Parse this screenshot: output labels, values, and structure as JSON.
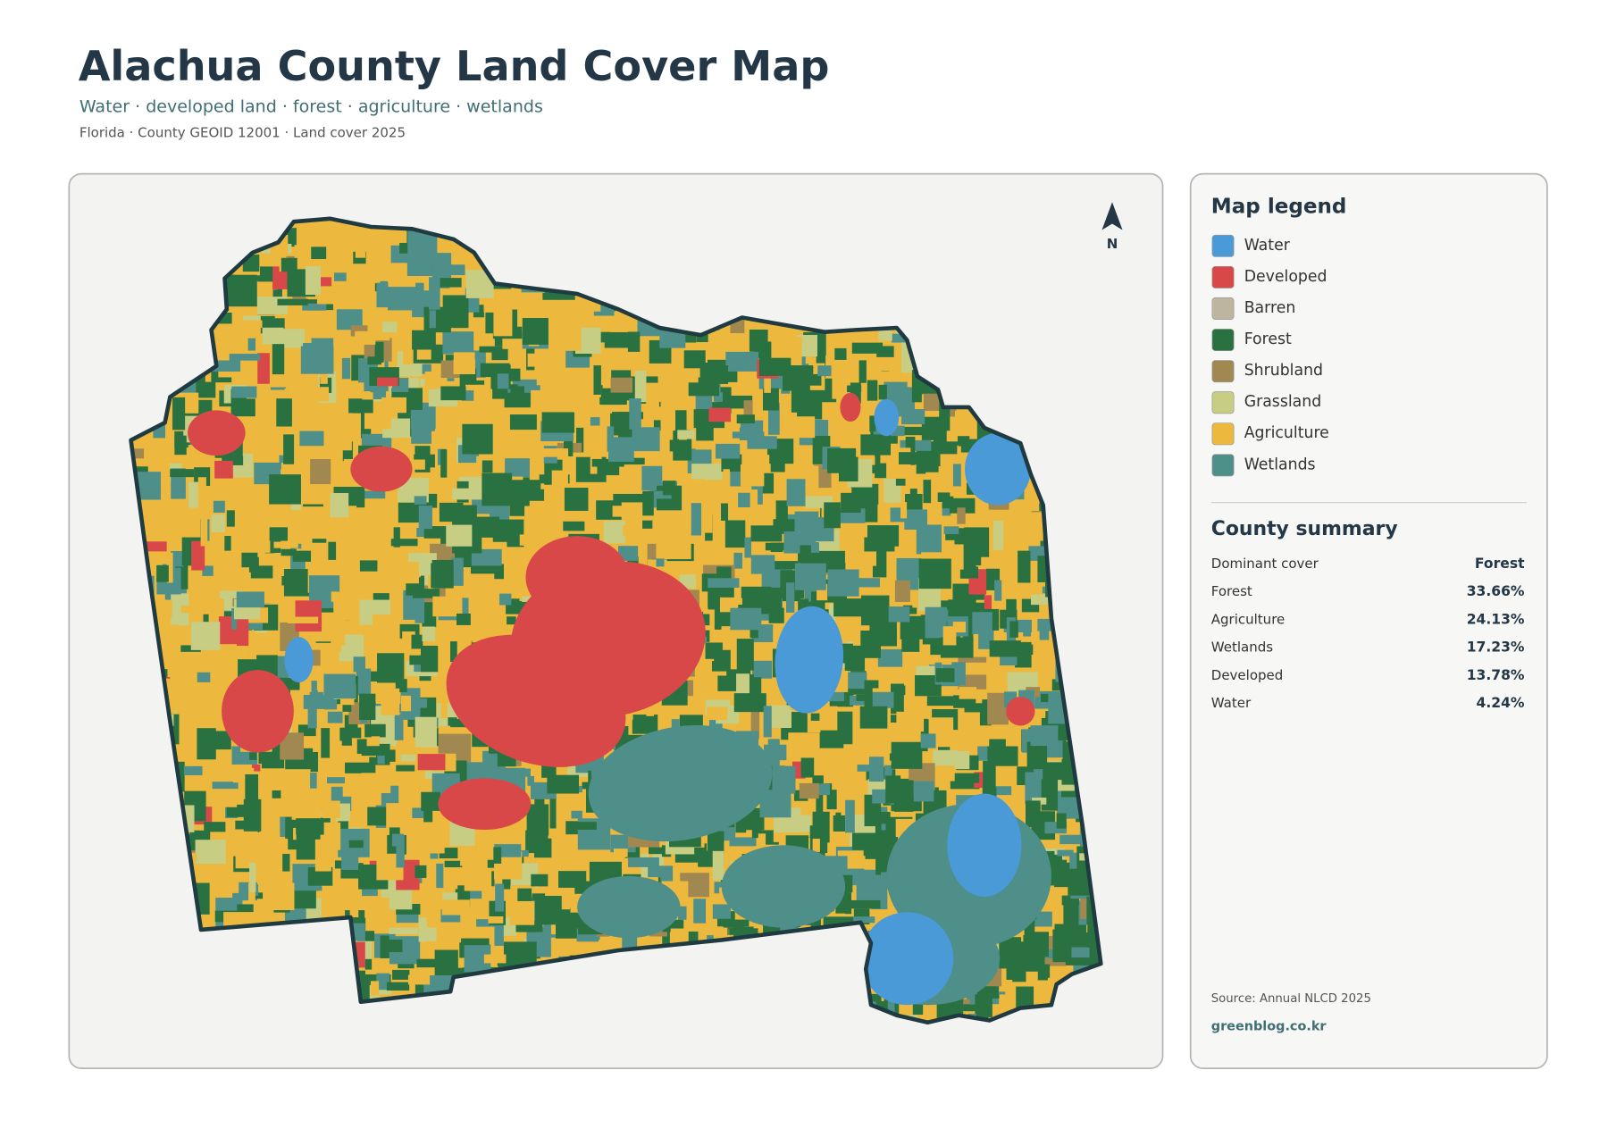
{
  "header": {
    "title": "Alachua County Land Cover Map",
    "subtitle": "Water · developed land · forest · agriculture · wetlands",
    "meta": "Florida · County GEOID 12001 · Land cover 2025"
  },
  "map": {
    "north_label": "N"
  },
  "legend": {
    "title": "Map legend",
    "items": [
      {
        "label": "Water",
        "color": "#4b9ad8"
      },
      {
        "label": "Developed",
        "color": "#d94848"
      },
      {
        "label": "Barren",
        "color": "#bdb5a0"
      },
      {
        "label": "Forest",
        "color": "#2a7142"
      },
      {
        "label": "Shrubland",
        "color": "#a08850"
      },
      {
        "label": "Grassland",
        "color": "#c8cd84"
      },
      {
        "label": "Agriculture",
        "color": "#ecb83d"
      },
      {
        "label": "Wetlands",
        "color": "#4e8f8a"
      }
    ]
  },
  "summary": {
    "title": "County summary",
    "rows": [
      {
        "label": "Dominant cover",
        "value": "Forest"
      },
      {
        "label": "Forest",
        "value": "33.66%"
      },
      {
        "label": "Agriculture",
        "value": "24.13%"
      },
      {
        "label": "Wetlands",
        "value": "17.23%"
      },
      {
        "label": "Developed",
        "value": "13.78%"
      },
      {
        "label": "Water",
        "value": "4.24%"
      }
    ]
  },
  "footer": {
    "source": "Source: Annual NLCD 2025",
    "site": "greenblog.co.kr"
  }
}
